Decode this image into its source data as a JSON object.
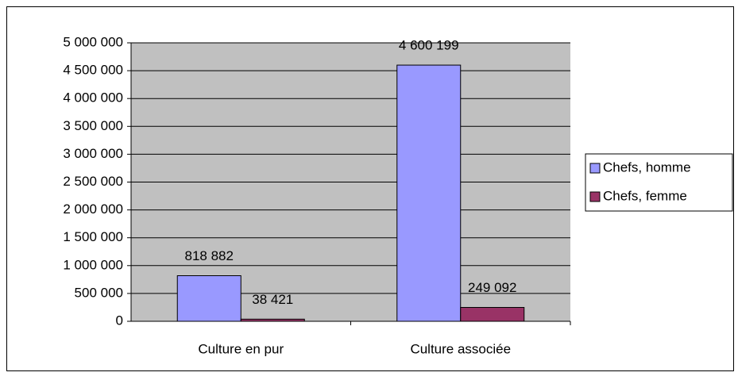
{
  "chart_data": {
    "type": "bar",
    "categories": [
      "Culture en pur",
      "Culture associée"
    ],
    "series": [
      {
        "name": "Chefs, homme",
        "color": "#9999ff",
        "values": [
          818882,
          4600199
        ],
        "value_labels": [
          "818 882",
          "4 600 199"
        ]
      },
      {
        "name": "Chefs, femme",
        "color": "#993366",
        "values": [
          38421,
          249092
        ],
        "value_labels": [
          "38 421",
          "249 092"
        ]
      }
    ],
    "ylim": [
      0,
      5000000
    ],
    "yticks": [
      0,
      {
        "value": 500000,
        "label": "500 000"
      },
      {
        "value": 1000000,
        "label": "1 000 000"
      },
      {
        "value": 1500000,
        "label": "1 500 000"
      },
      {
        "value": 2000000,
        "label": "2 000 000"
      },
      {
        "value": 2500000,
        "label": "2 500 000"
      },
      {
        "value": 3000000,
        "label": "3 000 000"
      },
      {
        "value": 3500000,
        "label": "3 500 000"
      },
      {
        "value": 4000000,
        "label": "4 000 000"
      },
      {
        "value": 4500000,
        "label": "4 500 000"
      },
      {
        "value": 5000000,
        "label": "5 000 000"
      }
    ],
    "grid": true,
    "plot_background": "#c0c0c0",
    "legend": "right"
  }
}
